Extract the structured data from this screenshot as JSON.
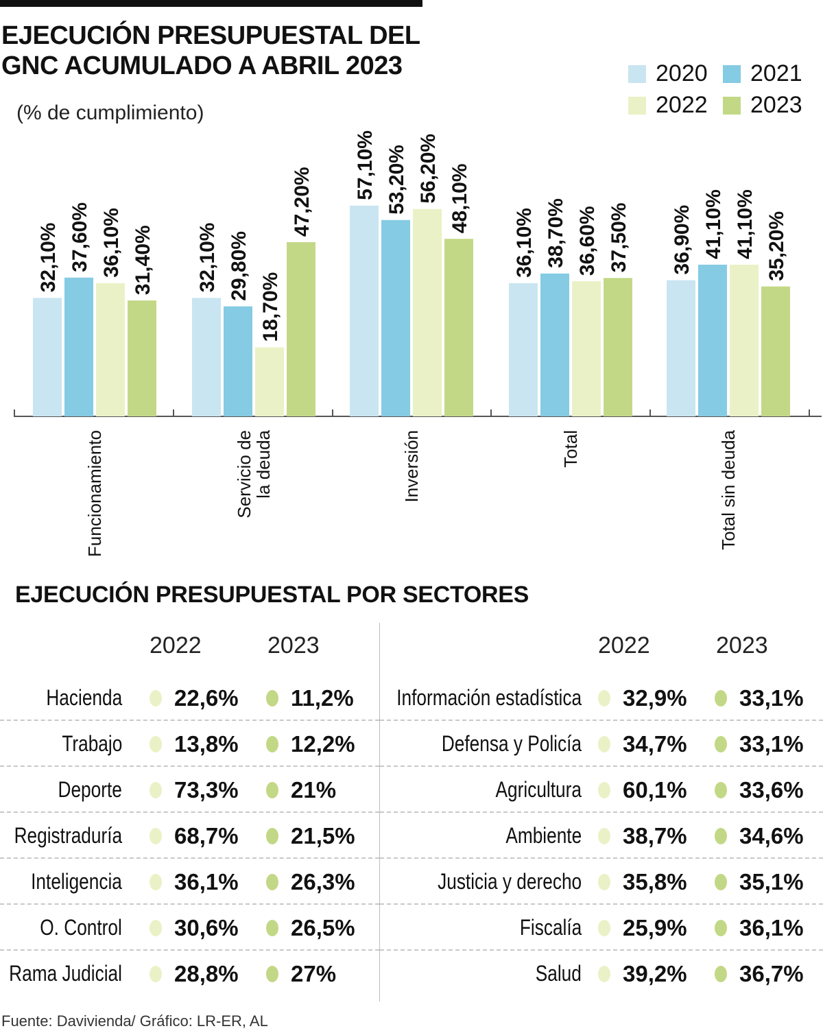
{
  "header": {
    "title_line1": "EJECUCIÓN PRESUPUESTAL DEL",
    "title_line2": "GNC ACUMULADO A ABRIL 2023",
    "subtitle": "(% de cumplimiento)"
  },
  "colors": {
    "2020": "#c9e5f1",
    "2021": "#85cbe3",
    "2022": "#ebf1c6",
    "2023": "#c3d886",
    "axis": "#555555"
  },
  "chart_data": {
    "type": "bar",
    "title": "EJECUCIÓN PRESUPUESTAL DEL GNC ACUMULADO A ABRIL 2023",
    "subtitle": "(% de cumplimiento)",
    "xlabel": "",
    "ylabel": "",
    "ylim": [
      0,
      60
    ],
    "grid": false,
    "legend_position": "top-right",
    "categories": [
      "Funcionamiento",
      "Servicio de la deuda",
      "Inversión",
      "Total",
      "Total sin deuda"
    ],
    "category_lines": [
      [
        "Funcionamiento"
      ],
      [
        "Servicio de",
        "la deuda"
      ],
      [
        "Inversión"
      ],
      [
        "Total"
      ],
      [
        "Total sin deuda"
      ]
    ],
    "series": [
      {
        "name": "2020",
        "values": [
          32.1,
          32.1,
          57.1,
          36.1,
          36.9
        ],
        "labels": [
          "32,10%",
          "32,10%",
          "57,10%",
          "36,10%",
          "36,90%"
        ]
      },
      {
        "name": "2021",
        "values": [
          37.6,
          29.8,
          53.2,
          38.7,
          41.1
        ],
        "labels": [
          "37,60%",
          "29,80%",
          "53,20%",
          "38,70%",
          "41,10%"
        ]
      },
      {
        "name": "2022",
        "values": [
          36.1,
          18.7,
          56.2,
          36.6,
          41.1
        ],
        "labels": [
          "36,10%",
          "18,70%",
          "56,20%",
          "36,60%",
          "41,10%"
        ]
      },
      {
        "name": "2023",
        "values": [
          31.4,
          47.2,
          48.1,
          37.5,
          35.2
        ],
        "labels": [
          "31,40%",
          "47,20%",
          "48,10%",
          "37,50%",
          "35,20%"
        ]
      }
    ]
  },
  "legend": [
    {
      "label": "2020",
      "color": "#c9e5f1"
    },
    {
      "label": "2021",
      "color": "#85cbe3"
    },
    {
      "label": "2022",
      "color": "#ebf1c6"
    },
    {
      "label": "2023",
      "color": "#c3d886"
    }
  ],
  "sectors": {
    "title": "EJECUCIÓN PRESUPUESTAL POR SECTORES",
    "col_2022": "2022",
    "col_2023": "2023",
    "left": [
      {
        "sector": "Hacienda",
        "v2022": "22,6%",
        "v2023": "11,2%"
      },
      {
        "sector": "Trabajo",
        "v2022": "13,8%",
        "v2023": "12,2%"
      },
      {
        "sector": "Deporte",
        "v2022": "73,3%",
        "v2023": "21%"
      },
      {
        "sector": "Registraduría",
        "v2022": "68,7%",
        "v2023": "21,5%"
      },
      {
        "sector": "Inteligencia",
        "v2022": "36,1%",
        "v2023": "26,3%"
      },
      {
        "sector": "O. Control",
        "v2022": "30,6%",
        "v2023": "26,5%"
      },
      {
        "sector": "Rama Judicial",
        "v2022": "28,8%",
        "v2023": "27%"
      }
    ],
    "right": [
      {
        "sector": "Información estadística",
        "v2022": "32,9%",
        "v2023": "33,1%"
      },
      {
        "sector": "Defensa y Policía",
        "v2022": "34,7%",
        "v2023": "33,1%"
      },
      {
        "sector": "Agricultura",
        "v2022": "60,1%",
        "v2023": "33,6%"
      },
      {
        "sector": "Ambiente",
        "v2022": "38,7%",
        "v2023": "34,6%"
      },
      {
        "sector": "Justicia y derecho",
        "v2022": "35,8%",
        "v2023": "35,1%"
      },
      {
        "sector": "Fiscalía",
        "v2022": "25,9%",
        "v2023": "36,1%"
      },
      {
        "sector": "Salud",
        "v2022": "39,2%",
        "v2023": "36,7%"
      }
    ]
  },
  "footer": "Fuente: Davivienda/ Gráfico: LR-ER, AL"
}
